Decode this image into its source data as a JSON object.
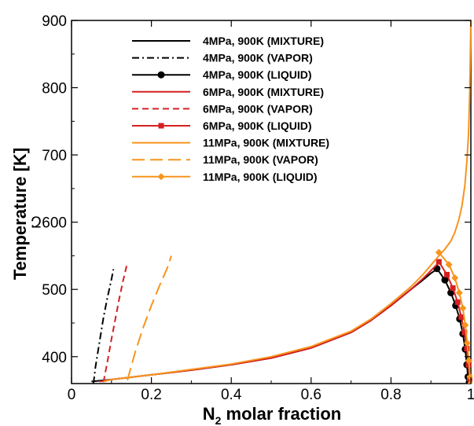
{
  "chart_data": {
    "type": "line",
    "title": "",
    "xlabel_main": "N",
    "xlabel_sub": "2",
    "xlabel_rest": " molar fraction",
    "ylabel": "Temperature [K]",
    "xlim": [
      0,
      1
    ],
    "ylim": [
      360,
      900
    ],
    "xticks": [
      0,
      0.2,
      0.4,
      0.6,
      0.8,
      1
    ],
    "xtick_labels": [
      "0",
      "0.2",
      "0.4",
      "0.6",
      "0.8",
      "1"
    ],
    "yticks": [
      400,
      500,
      600,
      700,
      800,
      900
    ],
    "ytick_labels": [
      "400",
      "500",
      "Զ600",
      "700",
      "800",
      "900"
    ],
    "grid": false,
    "legend_position": "upper-left",
    "series": [
      {
        "name": "4MPa, 900K (MIXTURE)",
        "color": "#000000",
        "dash": "solid",
        "marker": "none",
        "x": [
          0.05,
          0.1,
          0.2,
          0.3,
          0.4,
          0.5,
          0.6,
          0.7,
          0.75,
          0.8,
          0.85,
          0.88,
          0.9,
          0.915
        ],
        "y": [
          363,
          366,
          373,
          380,
          388,
          398,
          413,
          436,
          454,
          476,
          500,
          514,
          524,
          530
        ]
      },
      {
        "name": "4MPa, 900K (VAPOR)",
        "color": "#000000",
        "dash": "dashdot",
        "marker": "none",
        "x": [
          0.055,
          0.06,
          0.07,
          0.08,
          0.09,
          0.1,
          0.105
        ],
        "y": [
          360,
          385,
          422,
          458,
          488,
          515,
          530
        ]
      },
      {
        "name": "4MPa, 900K (LIQUID)",
        "color": "#000000",
        "dash": "solid",
        "marker": "circle",
        "x": [
          0.915,
          0.935,
          0.95,
          0.962,
          0.972,
          0.98,
          0.986,
          0.99,
          0.993,
          0.996,
          0.998,
          0.999
        ],
        "y": [
          531,
          514,
          495,
          476,
          456,
          434,
          411,
          388,
          370,
          362,
          361,
          360
        ]
      },
      {
        "name": "6MPa, 900K  (MIXTURE)",
        "color": "#d62020",
        "dash": "solid",
        "marker": "none",
        "x": [
          0.07,
          0.1,
          0.2,
          0.3,
          0.4,
          0.5,
          0.6,
          0.7,
          0.75,
          0.8,
          0.85,
          0.88,
          0.9,
          0.92
        ],
        "y": [
          363,
          366,
          373,
          380,
          388,
          398,
          413,
          436,
          454,
          476,
          500,
          516,
          528,
          540
        ]
      },
      {
        "name": "6MPa, 900K  (VAPOR)",
        "color": "#d62020",
        "dash": "dashed",
        "marker": "none",
        "x": [
          0.08,
          0.09,
          0.1,
          0.11,
          0.12,
          0.13,
          0.14
        ],
        "y": [
          362,
          393,
          426,
          457,
          488,
          515,
          540
        ]
      },
      {
        "name": "6MPa, 900K  (LIQUID)",
        "color": "#d62020",
        "dash": "solid",
        "marker": "square",
        "x": [
          0.92,
          0.94,
          0.955,
          0.967,
          0.976,
          0.984,
          0.99,
          0.994,
          0.997,
          0.999
        ],
        "y": [
          541,
          522,
          502,
          481,
          459,
          436,
          412,
          388,
          368,
          360
        ]
      },
      {
        "name": "11MPa, 900K  (MIXTURE)",
        "color": "#f7941d",
        "dash": "solid",
        "marker": "none",
        "x": [
          0.08,
          0.1,
          0.2,
          0.3,
          0.4,
          0.5,
          0.6,
          0.7,
          0.75,
          0.8,
          0.85,
          0.88,
          0.9,
          0.92,
          0.935,
          0.95,
          0.96,
          0.97,
          0.978,
          0.985,
          0.99,
          0.994,
          0.997,
          1.0
        ],
        "y": [
          363,
          366,
          373,
          381,
          389,
          400,
          415,
          438,
          456,
          479,
          504,
          522,
          536,
          550,
          560,
          572,
          585,
          604,
          625,
          655,
          690,
          730,
          790,
          900
        ]
      },
      {
        "name": "11MPa, 900K  (VAPOR)",
        "color": "#f7941d",
        "dash": "longdash",
        "marker": "none",
        "x": [
          0.14,
          0.16,
          0.18,
          0.2,
          0.22,
          0.24,
          0.25
        ],
        "y": [
          365,
          408,
          444,
          476,
          505,
          532,
          550
        ]
      },
      {
        "name": "11MPa, 900K  (LIQUID)",
        "color": "#f7941d",
        "dash": "solid",
        "marker": "diamond",
        "x": [
          0.92,
          0.945,
          0.96,
          0.971,
          0.98,
          0.986,
          0.991,
          0.995,
          0.998,
          1.0
        ],
        "y": [
          555,
          537,
          517,
          495,
          472,
          447,
          420,
          394,
          370,
          360
        ]
      }
    ]
  }
}
